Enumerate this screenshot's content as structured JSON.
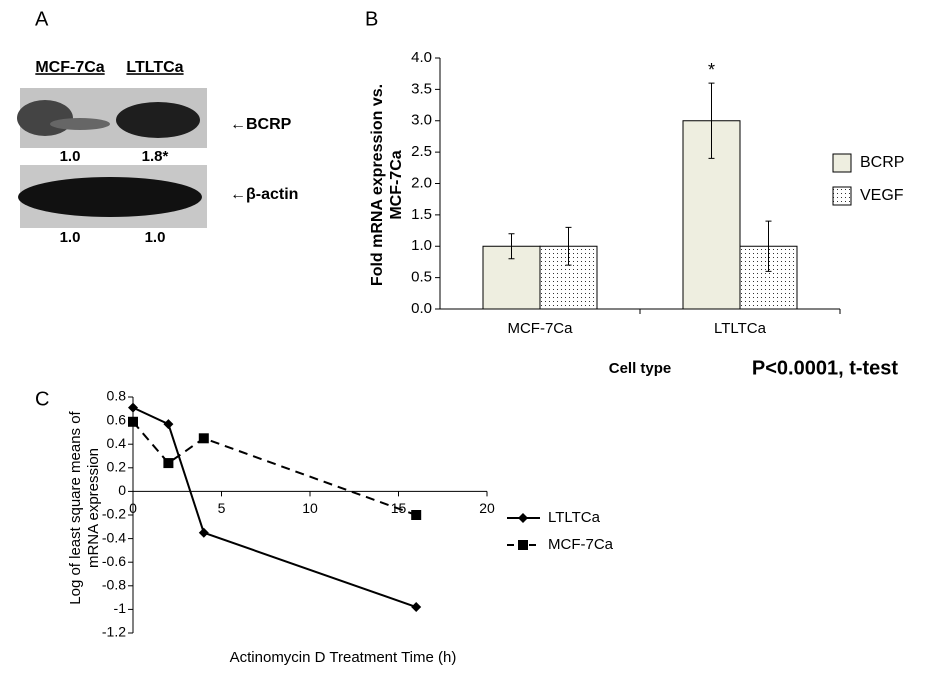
{
  "panel_a": {
    "label": "A",
    "lanes": [
      "MCF-7Ca",
      "LTLTCa"
    ],
    "bands": [
      {
        "name": "←BCRP",
        "values": [
          "1.0",
          "1.8*"
        ]
      },
      {
        "name": "←β-actin",
        "values": [
          "1.0",
          "1.0"
        ]
      }
    ]
  },
  "chart_data": [
    {
      "type": "bar",
      "label": "B",
      "y_label": "Fold mRNA expression vs. MCF-7Ca",
      "x_label": "Cell type",
      "annotation": "P<0.0001, t-test",
      "significance": "*",
      "categories": [
        "MCF-7Ca",
        "LTLTCa"
      ],
      "series": [
        {
          "name": "BCRP",
          "color": "#eeeee0",
          "pattern": "solid",
          "values": [
            1.0,
            3.0
          ],
          "errors": [
            0.2,
            0.6
          ]
        },
        {
          "name": "VEGF",
          "color": "#ffffff",
          "pattern": "dots",
          "values": [
            1.0,
            1.0
          ],
          "errors": [
            0.3,
            0.4
          ]
        }
      ],
      "ylim": [
        0,
        4
      ],
      "yticks": [
        {
          "value": 0,
          "label": "0.0"
        },
        {
          "value": 0.5,
          "label": "0.5"
        },
        {
          "value": 1,
          "label": "1.0"
        },
        {
          "value": 1.5,
          "label": "1.5"
        },
        {
          "value": 2,
          "label": "2.0"
        },
        {
          "value": 2.5,
          "label": "2.5"
        },
        {
          "value": 3,
          "label": "3.0"
        },
        {
          "value": 3.5,
          "label": "3.5"
        },
        {
          "value": 4,
          "label": "4.0"
        }
      ],
      "legend": "right"
    },
    {
      "type": "line",
      "label": "C",
      "y_label": "Log of least square means of mRNA expression",
      "x_label": "Actinomycin D Treatment Time (h)",
      "series": [
        {
          "name": "LTLTCa",
          "color": "#000000",
          "marker": "diamond",
          "dash": "solid",
          "x": [
            0,
            2,
            4,
            16
          ],
          "values": [
            0.71,
            0.57,
            -0.35,
            -0.98
          ]
        },
        {
          "name": "MCF-7Ca",
          "color": "#000000",
          "marker": "square",
          "dash": "dashed",
          "x": [
            0,
            2,
            4,
            16
          ],
          "values": [
            0.59,
            0.24,
            0.45,
            -0.2
          ]
        }
      ],
      "xlim": [
        0,
        20
      ],
      "xticks": [
        0,
        5,
        10,
        15,
        20
      ],
      "ylim": [
        -1.2,
        0.8
      ],
      "yticks": [
        -1.2,
        -1,
        -0.8,
        -0.6,
        -0.4,
        -0.2,
        0,
        0.2,
        0.4,
        0.6,
        0.8
      ],
      "legend": "right"
    }
  ]
}
